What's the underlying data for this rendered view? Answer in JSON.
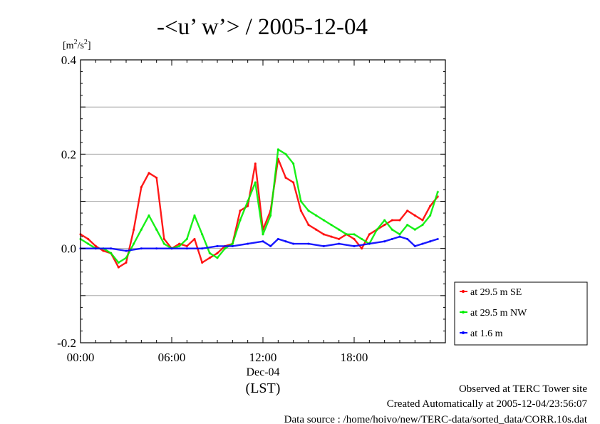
{
  "chart_data": {
    "type": "line",
    "title": "-<u’ w’> / 2005-12-04",
    "ylabel": "[m²/s²]",
    "ylabel_base": "[m",
    "ylabel_sup1": "2",
    "ylabel_mid": "/s",
    "ylabel_sup2": "2",
    "ylabel_end": "]",
    "ylim": [
      -0.2,
      0.4
    ],
    "yticks": [
      -0.2,
      0.0,
      0.2,
      0.4
    ],
    "ytick_labels": [
      "-0.2",
      "0.0",
      "0.2",
      "0.4"
    ],
    "xlim": [
      0,
      24
    ],
    "xticks": [
      0,
      6,
      12,
      18
    ],
    "xtick_labels": [
      "00:00",
      "06:00",
      "12:00",
      "18:00"
    ],
    "date_label": "Dec-04",
    "xlabel": "(LST)",
    "grid": true,
    "legend_position": "right",
    "series": [
      {
        "name": "at 29.5 m SE",
        "color": "#ff0000",
        "x": [
          0,
          0.5,
          1,
          1.5,
          2,
          2.5,
          3,
          3.5,
          4,
          4.5,
          5,
          5.5,
          6,
          6.5,
          7,
          7.5,
          8,
          8.5,
          9,
          9.5,
          10,
          10.5,
          11,
          11.5,
          12,
          12.5,
          13,
          13.5,
          14,
          14.5,
          15,
          15.5,
          16,
          16.5,
          17,
          17.5,
          18,
          18.5,
          19,
          19.5,
          20,
          20.5,
          21,
          21.5,
          22,
          22.5,
          23,
          23.5
        ],
        "y": [
          0.03,
          0.02,
          0.005,
          -0.005,
          -0.01,
          -0.04,
          -0.03,
          0.04,
          0.13,
          0.16,
          0.15,
          0.02,
          0.0,
          0.01,
          0.005,
          0.02,
          -0.03,
          -0.02,
          -0.01,
          0.005,
          0.01,
          0.08,
          0.09,
          0.18,
          0.04,
          0.08,
          0.19,
          0.15,
          0.14,
          0.08,
          0.05,
          0.04,
          0.03,
          0.025,
          0.02,
          0.03,
          0.02,
          0.0,
          0.03,
          0.04,
          0.05,
          0.06,
          0.06,
          0.08,
          0.07,
          0.06,
          0.09,
          0.11
        ]
      },
      {
        "name": "at 29.5 m NW",
        "color": "#00ee00",
        "x": [
          0,
          0.5,
          1,
          1.5,
          2,
          2.5,
          3,
          3.5,
          4,
          4.5,
          5,
          5.5,
          6,
          6.5,
          7,
          7.5,
          8,
          8.5,
          9,
          9.5,
          10,
          10.5,
          11,
          11.5,
          12,
          12.5,
          13,
          13.5,
          14,
          14.5,
          15,
          15.5,
          16,
          16.5,
          17,
          17.5,
          18,
          18.5,
          19,
          19.5,
          20,
          20.5,
          21,
          21.5,
          22,
          22.5,
          23,
          23.5
        ],
        "y": [
          0.02,
          0.01,
          0.0,
          0.0,
          -0.01,
          -0.03,
          -0.02,
          0.01,
          0.04,
          0.07,
          0.04,
          0.01,
          0.0,
          0.005,
          0.02,
          0.07,
          0.03,
          -0.01,
          -0.02,
          0.0,
          0.01,
          0.06,
          0.1,
          0.14,
          0.03,
          0.07,
          0.21,
          0.2,
          0.18,
          0.1,
          0.08,
          0.07,
          0.06,
          0.05,
          0.04,
          0.03,
          0.03,
          0.02,
          0.01,
          0.04,
          0.06,
          0.04,
          0.03,
          0.05,
          0.04,
          0.05,
          0.07,
          0.12
        ]
      },
      {
        "name": "at 1.6 m",
        "color": "#0000ff",
        "x": [
          0,
          1,
          2,
          3,
          4,
          5,
          6,
          7,
          8,
          9,
          10,
          11,
          12,
          12.5,
          13,
          13.5,
          14,
          15,
          16,
          17,
          18,
          19,
          20,
          20.5,
          21,
          21.5,
          22,
          22.5,
          23,
          23.5
        ],
        "y": [
          0.0,
          0.0,
          0.0,
          -0.005,
          0.0,
          0.0,
          0.0,
          0.0,
          0.0,
          0.005,
          0.005,
          0.01,
          0.015,
          0.005,
          0.02,
          0.015,
          0.01,
          0.01,
          0.005,
          0.01,
          0.005,
          0.01,
          0.015,
          0.02,
          0.025,
          0.02,
          0.005,
          0.01,
          0.015,
          0.02
        ]
      }
    ]
  },
  "footer": {
    "line1": "Observed at TERC Tower site",
    "line2": "Created Automatically at 2005-12-04/23:56:07",
    "line3": "Data source : /home/hoivo/new/TERC-data/sorted_data/CORR.10s.dat"
  }
}
